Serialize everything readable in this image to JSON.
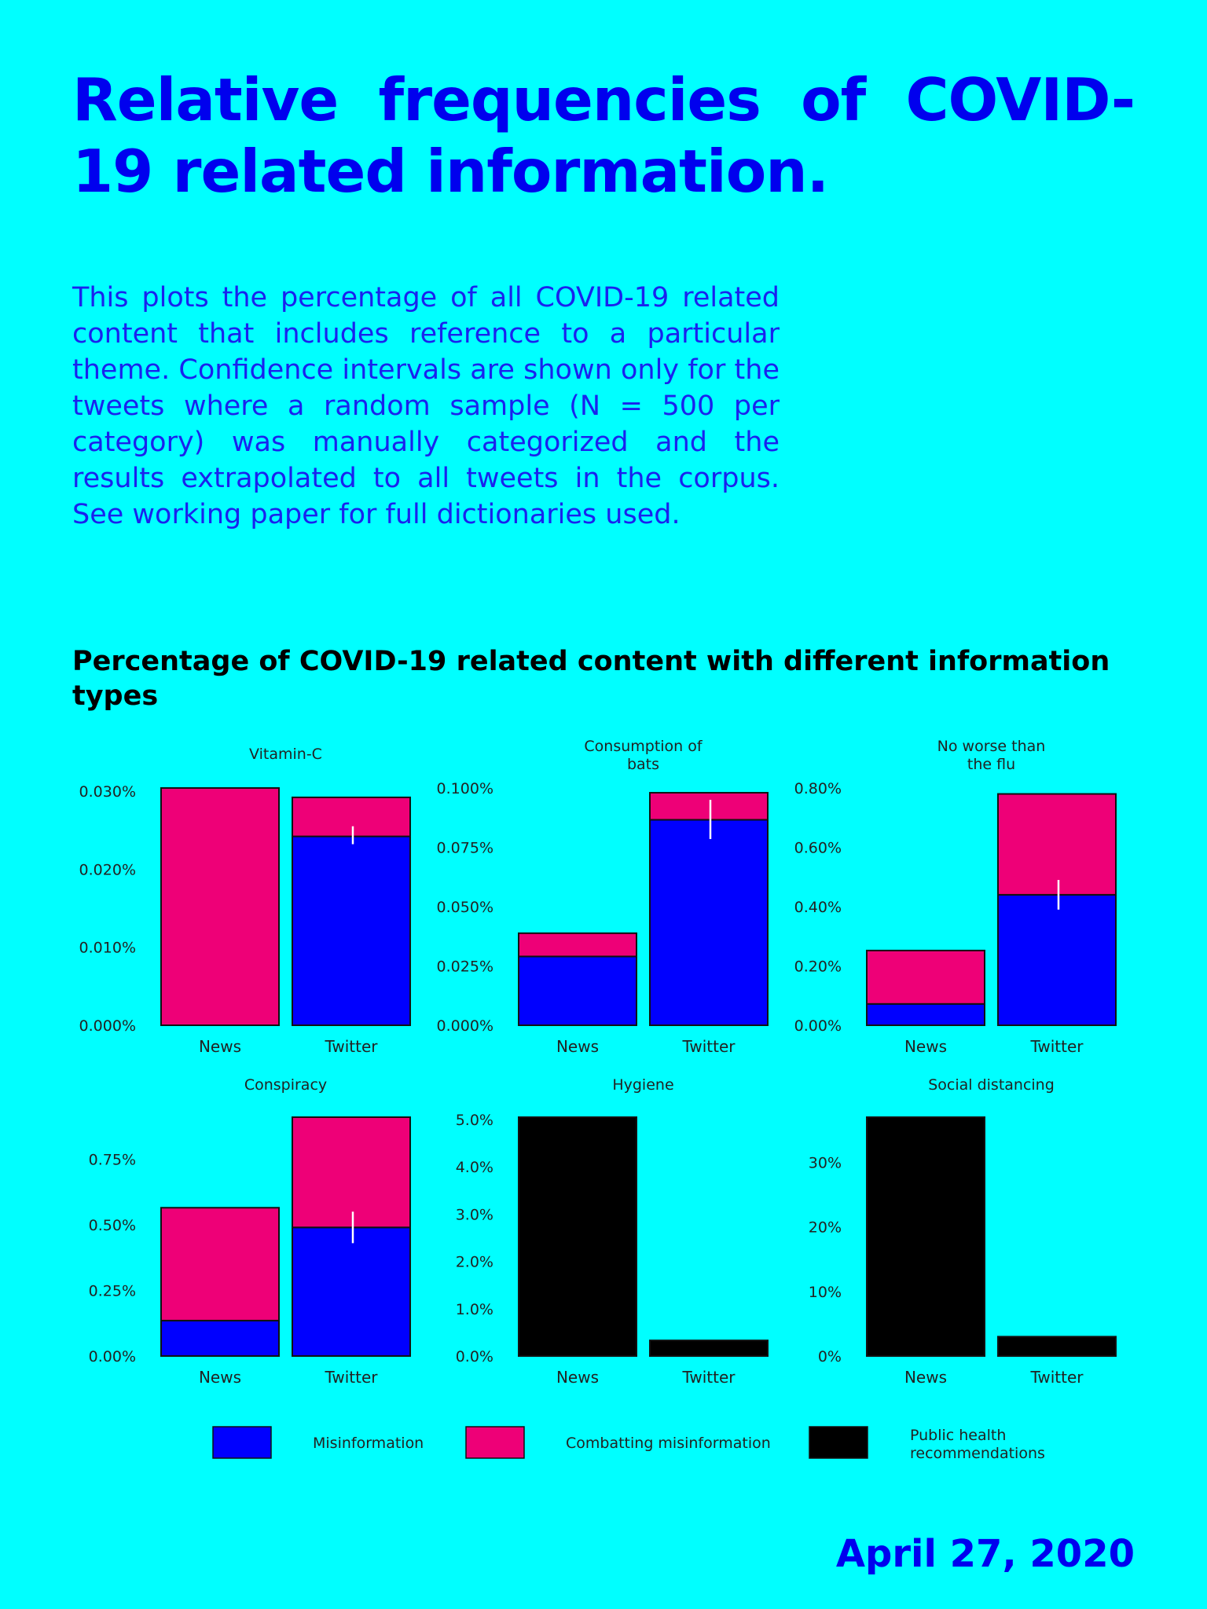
{
  "title": "Relative frequencies of COVID-19 related information.",
  "description": "This plots the percentage of all COVID-19 related content that includes reference to a particular theme. Confidence intervals are shown only for the tweets where a random sample (N = 500 per category) was manually categorized and the results extrapolated to all tweets in the corpus. See working paper for full dictionaries used.",
  "date": "April 27, 2020",
  "colors": {
    "background": "#00FFFF",
    "misinformation": "#0000FF",
    "combatting": "#EE0077",
    "public_health": "#000000",
    "title": "#0000EE"
  },
  "chart_data": {
    "type": "bar",
    "title": "Percentage of COVID-19 related content with different information types",
    "stacked": true,
    "categories": [
      "News",
      "Twitter"
    ],
    "legend": [
      {
        "name": "Misinformation",
        "color": "#0000FF"
      },
      {
        "name": "Combatting misinformation",
        "color": "#EE0077"
      },
      {
        "name": "Public health recommendations",
        "color": "#000000"
      }
    ],
    "legend_position": "bottom",
    "panels": [
      {
        "title": "Vitamin-C",
        "ylim": [
          0,
          0.0304
        ],
        "ticks": [
          0,
          0.01,
          0.02,
          0.03
        ],
        "tick_labels": [
          "0.000%",
          "0.010%",
          "0.020%",
          "0.030%"
        ],
        "series": [
          {
            "name": "Misinformation",
            "values": [
              0,
              0.0242
            ]
          },
          {
            "name": "Combatting misinformation",
            "values": [
              0.0304,
              0.005
            ]
          }
        ],
        "error_bar": {
          "category": "Twitter",
          "low": 0.0232,
          "high": 0.0255
        }
      },
      {
        "title": "Consumption of bats",
        "ylim": [
          0,
          0.1
        ],
        "ticks": [
          0,
          0.025,
          0.05,
          0.075,
          0.1
        ],
        "tick_labels": [
          "0.000%",
          "0.025%",
          "0.050%",
          "0.075%",
          "0.100%"
        ],
        "series": [
          {
            "name": "Misinformation",
            "values": [
              0.029,
              0.0866
            ]
          },
          {
            "name": "Combatting misinformation",
            "values": [
              0.0098,
              0.0114
            ]
          }
        ],
        "error_bar": {
          "category": "Twitter",
          "low": 0.0785,
          "high": 0.095
        }
      },
      {
        "title": "No worse than the flu",
        "ylim": [
          0,
          0.8
        ],
        "ticks": [
          0,
          0.2,
          0.4,
          0.6,
          0.8
        ],
        "tick_labels": [
          "0.00%",
          "0.20%",
          "0.40%",
          "0.60%",
          "0.80%"
        ],
        "series": [
          {
            "name": "Misinformation",
            "values": [
              0.072,
              0.44
            ]
          },
          {
            "name": "Combatting misinformation",
            "values": [
              0.18,
              0.34
            ]
          }
        ],
        "error_bar": {
          "category": "Twitter",
          "low": 0.39,
          "high": 0.49
        }
      },
      {
        "title": "Conspiracy",
        "ylim": [
          0,
          0.91
        ],
        "ticks": [
          0,
          0.25,
          0.5,
          0.75
        ],
        "tick_labels": [
          "0.00%",
          "0.25%",
          "0.50%",
          "0.75%"
        ],
        "series": [
          {
            "name": "Misinformation",
            "values": [
              0.135,
              0.49
            ]
          },
          {
            "name": "Combatting misinformation",
            "values": [
              0.43,
              0.42
            ]
          }
        ],
        "error_bar": {
          "category": "Twitter",
          "low": 0.43,
          "high": 0.55
        }
      },
      {
        "title": "Hygiene",
        "ylim": [
          0,
          5.05
        ],
        "ticks": [
          0,
          1,
          2,
          3,
          4,
          5
        ],
        "tick_labels": [
          "0.0%",
          "1.0%",
          "2.0%",
          "3.0%",
          "4.0%",
          "5.0%"
        ],
        "series": [
          {
            "name": "Public health recommendations",
            "values": [
              5.05,
              0.33
            ]
          }
        ]
      },
      {
        "title": "Social distancing",
        "ylim": [
          0,
          37
        ],
        "ticks": [
          0,
          10,
          20,
          30
        ],
        "tick_labels": [
          "0%",
          "10%",
          "20%",
          "30%"
        ],
        "series": [
          {
            "name": "Public health recommendations",
            "values": [
              37,
              3
            ]
          }
        ]
      }
    ]
  }
}
